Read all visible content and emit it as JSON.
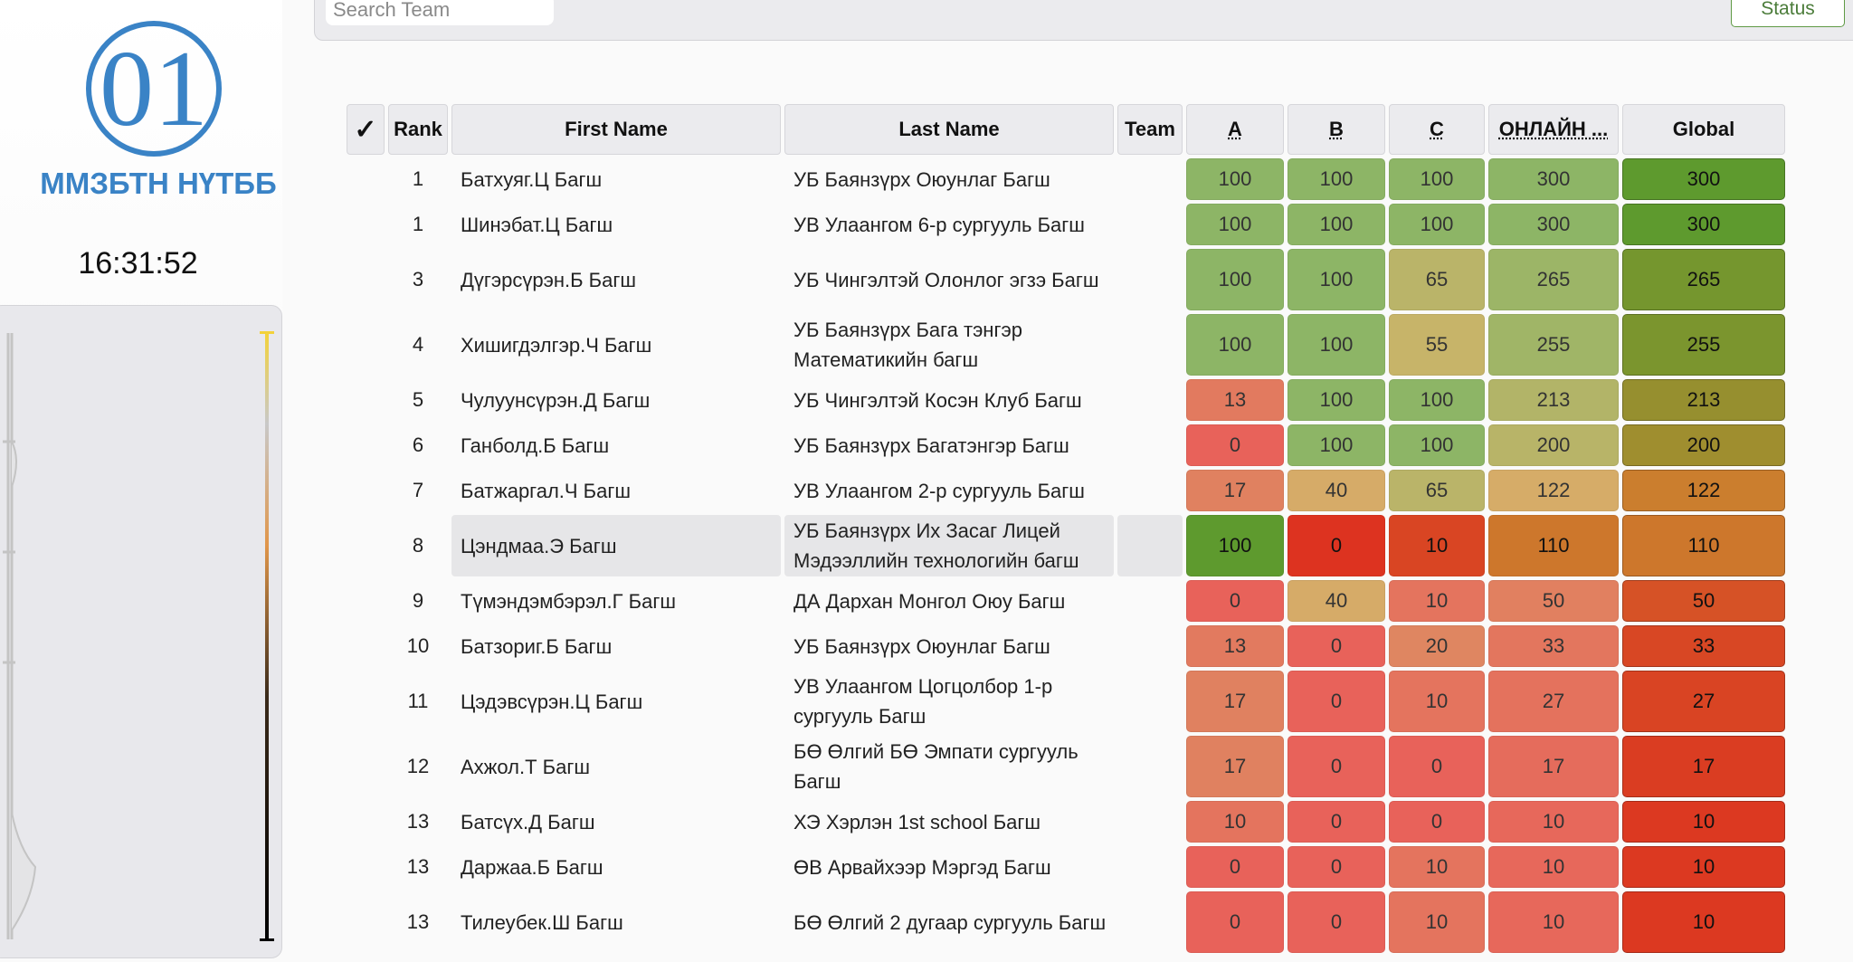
{
  "sidebar": {
    "logo_text": "01",
    "org_name": "ММЗБТН НҮТББ",
    "clock": "16:31:52"
  },
  "toolbar": {
    "search_placeholder": "Search Team",
    "status_label": "Status"
  },
  "table": {
    "headers": {
      "check": "✓",
      "rank": "Rank",
      "first_name": "First Name",
      "last_name": "Last Name",
      "team": "Team",
      "a": "A",
      "b": "B",
      "c": "C",
      "online": "ОНЛАЙН ...",
      "global": "Global"
    },
    "highlighted_row": 7,
    "rows": [
      {
        "rank": "1",
        "first": "Батхуяг.Ц Багш",
        "last": "УБ Баянзүрх Оюунлаг Багш",
        "team": "",
        "a": 100,
        "b": 100,
        "c": 100,
        "online": 300,
        "global": 300
      },
      {
        "rank": "1",
        "first": "Шинэбат.Ц Багш",
        "last": "УВ Улаангом 6-р сургууль Багш",
        "team": "",
        "a": 100,
        "b": 100,
        "c": 100,
        "online": 300,
        "global": 300
      },
      {
        "rank": "3",
        "first": "Дүгэрсүрэн.Б Багш",
        "last": "УБ Чингэлтэй Олонлог эгзэ Багш",
        "team": "",
        "a": 100,
        "b": 100,
        "c": 65,
        "online": 265,
        "global": 265
      },
      {
        "rank": "4",
        "first": "Хишигдэлгэр.Ч Багш",
        "last": "УБ Баянзүрх Бага тэнгэр Математикийн багш",
        "team": "",
        "a": 100,
        "b": 100,
        "c": 55,
        "online": 255,
        "global": 255
      },
      {
        "rank": "5",
        "first": "Чулуунсүрэн.Д Багш",
        "last": "УБ Чингэлтэй Косэн Клуб Багш",
        "team": "",
        "a": 13,
        "b": 100,
        "c": 100,
        "online": 213,
        "global": 213
      },
      {
        "rank": "6",
        "first": "Ганболд.Б Багш",
        "last": "УБ Баянзүрх Багатэнгэр Багш",
        "team": "",
        "a": 0,
        "b": 100,
        "c": 100,
        "online": 200,
        "global": 200
      },
      {
        "rank": "7",
        "first": "Батжаргал.Ч Багш",
        "last": "УВ Улаангом 2-р сургууль Багш",
        "team": "",
        "a": 17,
        "b": 40,
        "c": 65,
        "online": 122,
        "global": 122
      },
      {
        "rank": "8",
        "first": "Цэндмаа.Э Багш",
        "last": "УБ Баянзүрх Их Засаг Лицей Мэдээллийн технологийн багш",
        "team": "",
        "a": 100,
        "b": 0,
        "c": 10,
        "online": 110,
        "global": 110
      },
      {
        "rank": "9",
        "first": "Түмэндэмбэрэл.Г Багш",
        "last": "ДА Дархан Монгол Оюу Багш",
        "team": "",
        "a": 0,
        "b": 40,
        "c": 10,
        "online": 50,
        "global": 50
      },
      {
        "rank": "10",
        "first": "Батзориг.Б Багш",
        "last": "УБ Баянзүрх Оюунлаг Багш",
        "team": "",
        "a": 13,
        "b": 0,
        "c": 20,
        "online": 33,
        "global": 33
      },
      {
        "rank": "11",
        "first": "Цэдэвсүрэн.Ц Багш",
        "last": "УВ Улаангом Цогцолбор 1-р сургууль Багш",
        "team": "",
        "a": 17,
        "b": 0,
        "c": 10,
        "online": 27,
        "global": 27
      },
      {
        "rank": "12",
        "first": "Ахжол.Т Багш",
        "last": "БӨ Өлгий БӨ Эмпати сургууль Багш",
        "team": "",
        "a": 17,
        "b": 0,
        "c": 0,
        "online": 17,
        "global": 17
      },
      {
        "rank": "13",
        "first": "Батсүх.Д Багш",
        "last": "ХЭ Хэрлэн 1st school Багш",
        "team": "",
        "a": 10,
        "b": 0,
        "c": 0,
        "online": 10,
        "global": 10
      },
      {
        "rank": "13",
        "first": "Даржаа.Б Багш",
        "last": "ӨВ Арвайхээр Мэргэд Багш",
        "team": "",
        "a": 0,
        "b": 0,
        "c": 10,
        "online": 10,
        "global": 10
      },
      {
        "rank": "13",
        "first": "Тилеубек.Ш Багш",
        "last": "БӨ Өлгий 2 дугаар сургууль Багш",
        "team": "",
        "a": 0,
        "b": 0,
        "c": 10,
        "online": 10,
        "global": 10
      }
    ],
    "max": {
      "a": 100,
      "b": 100,
      "c": 100,
      "online": 300,
      "global": 300
    }
  },
  "colors": {
    "brand_blue": "#3a83c6",
    "status_green": "#5f9a45",
    "scale_low": "#e8625a",
    "scale_mid": "#d4b46a",
    "scale_high": "#8db566",
    "strong_low": "#dd3320",
    "strong_mid": "#c9862f",
    "strong_high": "#5e9a2e"
  }
}
